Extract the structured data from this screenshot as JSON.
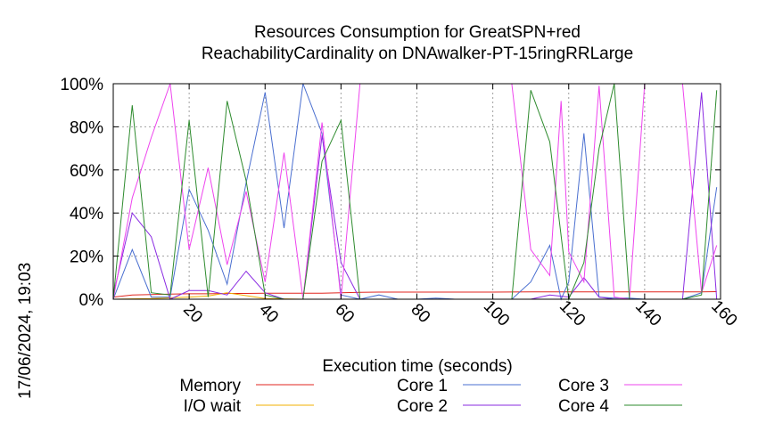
{
  "chart_data": {
    "type": "line",
    "title": [
      "Resources Consumption for GreatSPN+red",
      "ReachabilityCardinality on DNAwalker-PT-15ringRRLarge"
    ],
    "xlabel": "Execution time (seconds)",
    "ylabel": "",
    "timestamp": "17/06/2024, 19:03",
    "xlim": [
      0,
      160
    ],
    "ylim": [
      0,
      100
    ],
    "xticks": [
      20,
      40,
      60,
      80,
      100,
      120,
      140,
      160
    ],
    "xtick_labels": [
      "20",
      "40",
      "60",
      "80",
      "100",
      "120",
      "140",
      "160"
    ],
    "yticks": [
      0,
      20,
      40,
      60,
      80,
      100
    ],
    "ytick_labels": [
      "0%",
      "20%",
      "40%",
      "60%",
      "80%",
      "100%"
    ],
    "grid": true,
    "legend_position": "bottom",
    "series": [
      {
        "name": "Memory",
        "color": "#e0261f",
        "x": [
          0,
          5,
          10,
          15,
          20,
          25,
          30,
          35,
          40,
          45,
          50,
          55,
          60,
          65,
          70,
          80,
          90,
          100,
          110,
          120,
          130,
          140,
          150,
          155,
          159
        ],
        "y": [
          1,
          2,
          2.2,
          2.4,
          2.5,
          2.5,
          2.7,
          2.7,
          2.8,
          2.8,
          2.8,
          2.8,
          3,
          3.2,
          3.3,
          3.3,
          3.3,
          3.3,
          3.4,
          3.4,
          3.4,
          3.4,
          3.4,
          3.4,
          3.5
        ]
      },
      {
        "name": "I/O wait",
        "color": "#f0b000",
        "x": [
          0,
          10,
          20,
          25,
          30,
          40,
          50,
          60,
          80,
          100,
          120,
          140,
          159
        ],
        "y": [
          0,
          0.3,
          1,
          1.5,
          3,
          0.3,
          0,
          0,
          0,
          0,
          0,
          0,
          0
        ]
      },
      {
        "name": "Core 1",
        "color": "#4a6fd0",
        "x": [
          0,
          5,
          10,
          15,
          20,
          25,
          30,
          35,
          40,
          45,
          50,
          55,
          60,
          65,
          70,
          75,
          80,
          85,
          90,
          95,
          100,
          105,
          110,
          115,
          118,
          120,
          124,
          128,
          132,
          136,
          140,
          145,
          150,
          155,
          159
        ],
        "y": [
          0,
          23,
          1,
          1,
          51,
          32,
          7,
          54,
          96,
          33,
          100,
          77,
          2,
          0,
          2,
          0,
          0,
          0.5,
          0,
          0,
          0,
          0,
          8,
          25,
          0,
          8,
          77,
          1,
          0.5,
          0.5,
          0,
          0,
          0,
          3,
          52
        ]
      },
      {
        "name": "Core 2",
        "color": "#8a2be2",
        "x": [
          0,
          5,
          10,
          15,
          20,
          25,
          30,
          35,
          40,
          45,
          50,
          55,
          60,
          65,
          70,
          80,
          90,
          100,
          110,
          115,
          120,
          124,
          128,
          132,
          136,
          140,
          145,
          150,
          155,
          159
        ],
        "y": [
          2,
          40,
          29,
          0,
          4,
          4,
          2,
          13,
          3,
          0,
          0,
          76,
          17,
          0,
          0,
          0,
          0,
          0,
          0,
          2,
          1,
          10,
          1,
          0,
          0,
          0,
          0,
          0,
          96,
          0
        ]
      },
      {
        "name": "Core 3",
        "color": "#ee44ee",
        "x": [
          0,
          5,
          10,
          15,
          20,
          25,
          30,
          35,
          40,
          45,
          50,
          55,
          60,
          65,
          70,
          80,
          90,
          100,
          105,
          110,
          115,
          118,
          120,
          124,
          128,
          132,
          136,
          140,
          145,
          150,
          155,
          159
        ],
        "y": [
          0,
          47,
          75,
          100,
          23,
          61,
          16,
          50,
          8,
          68,
          0,
          82,
          0,
          100,
          100,
          100,
          100,
          100,
          100,
          23,
          11,
          92,
          22,
          8,
          99,
          1,
          0,
          100,
          100,
          100,
          3,
          25
        ]
      },
      {
        "name": "Core 4",
        "color": "#2e8b2e",
        "x": [
          0,
          5,
          10,
          15,
          20,
          25,
          30,
          35,
          40,
          45,
          50,
          55,
          60,
          65,
          70,
          80,
          90,
          100,
          105,
          110,
          115,
          120,
          124,
          128,
          132,
          136,
          140,
          145,
          150,
          155,
          159
        ],
        "y": [
          0,
          90,
          3,
          2,
          83,
          1,
          92,
          55,
          2,
          0,
          0,
          64,
          83,
          0,
          0,
          0,
          0,
          0,
          0,
          97,
          73,
          0,
          17,
          70,
          100,
          0,
          0,
          0,
          0,
          2,
          97
        ]
      }
    ]
  }
}
